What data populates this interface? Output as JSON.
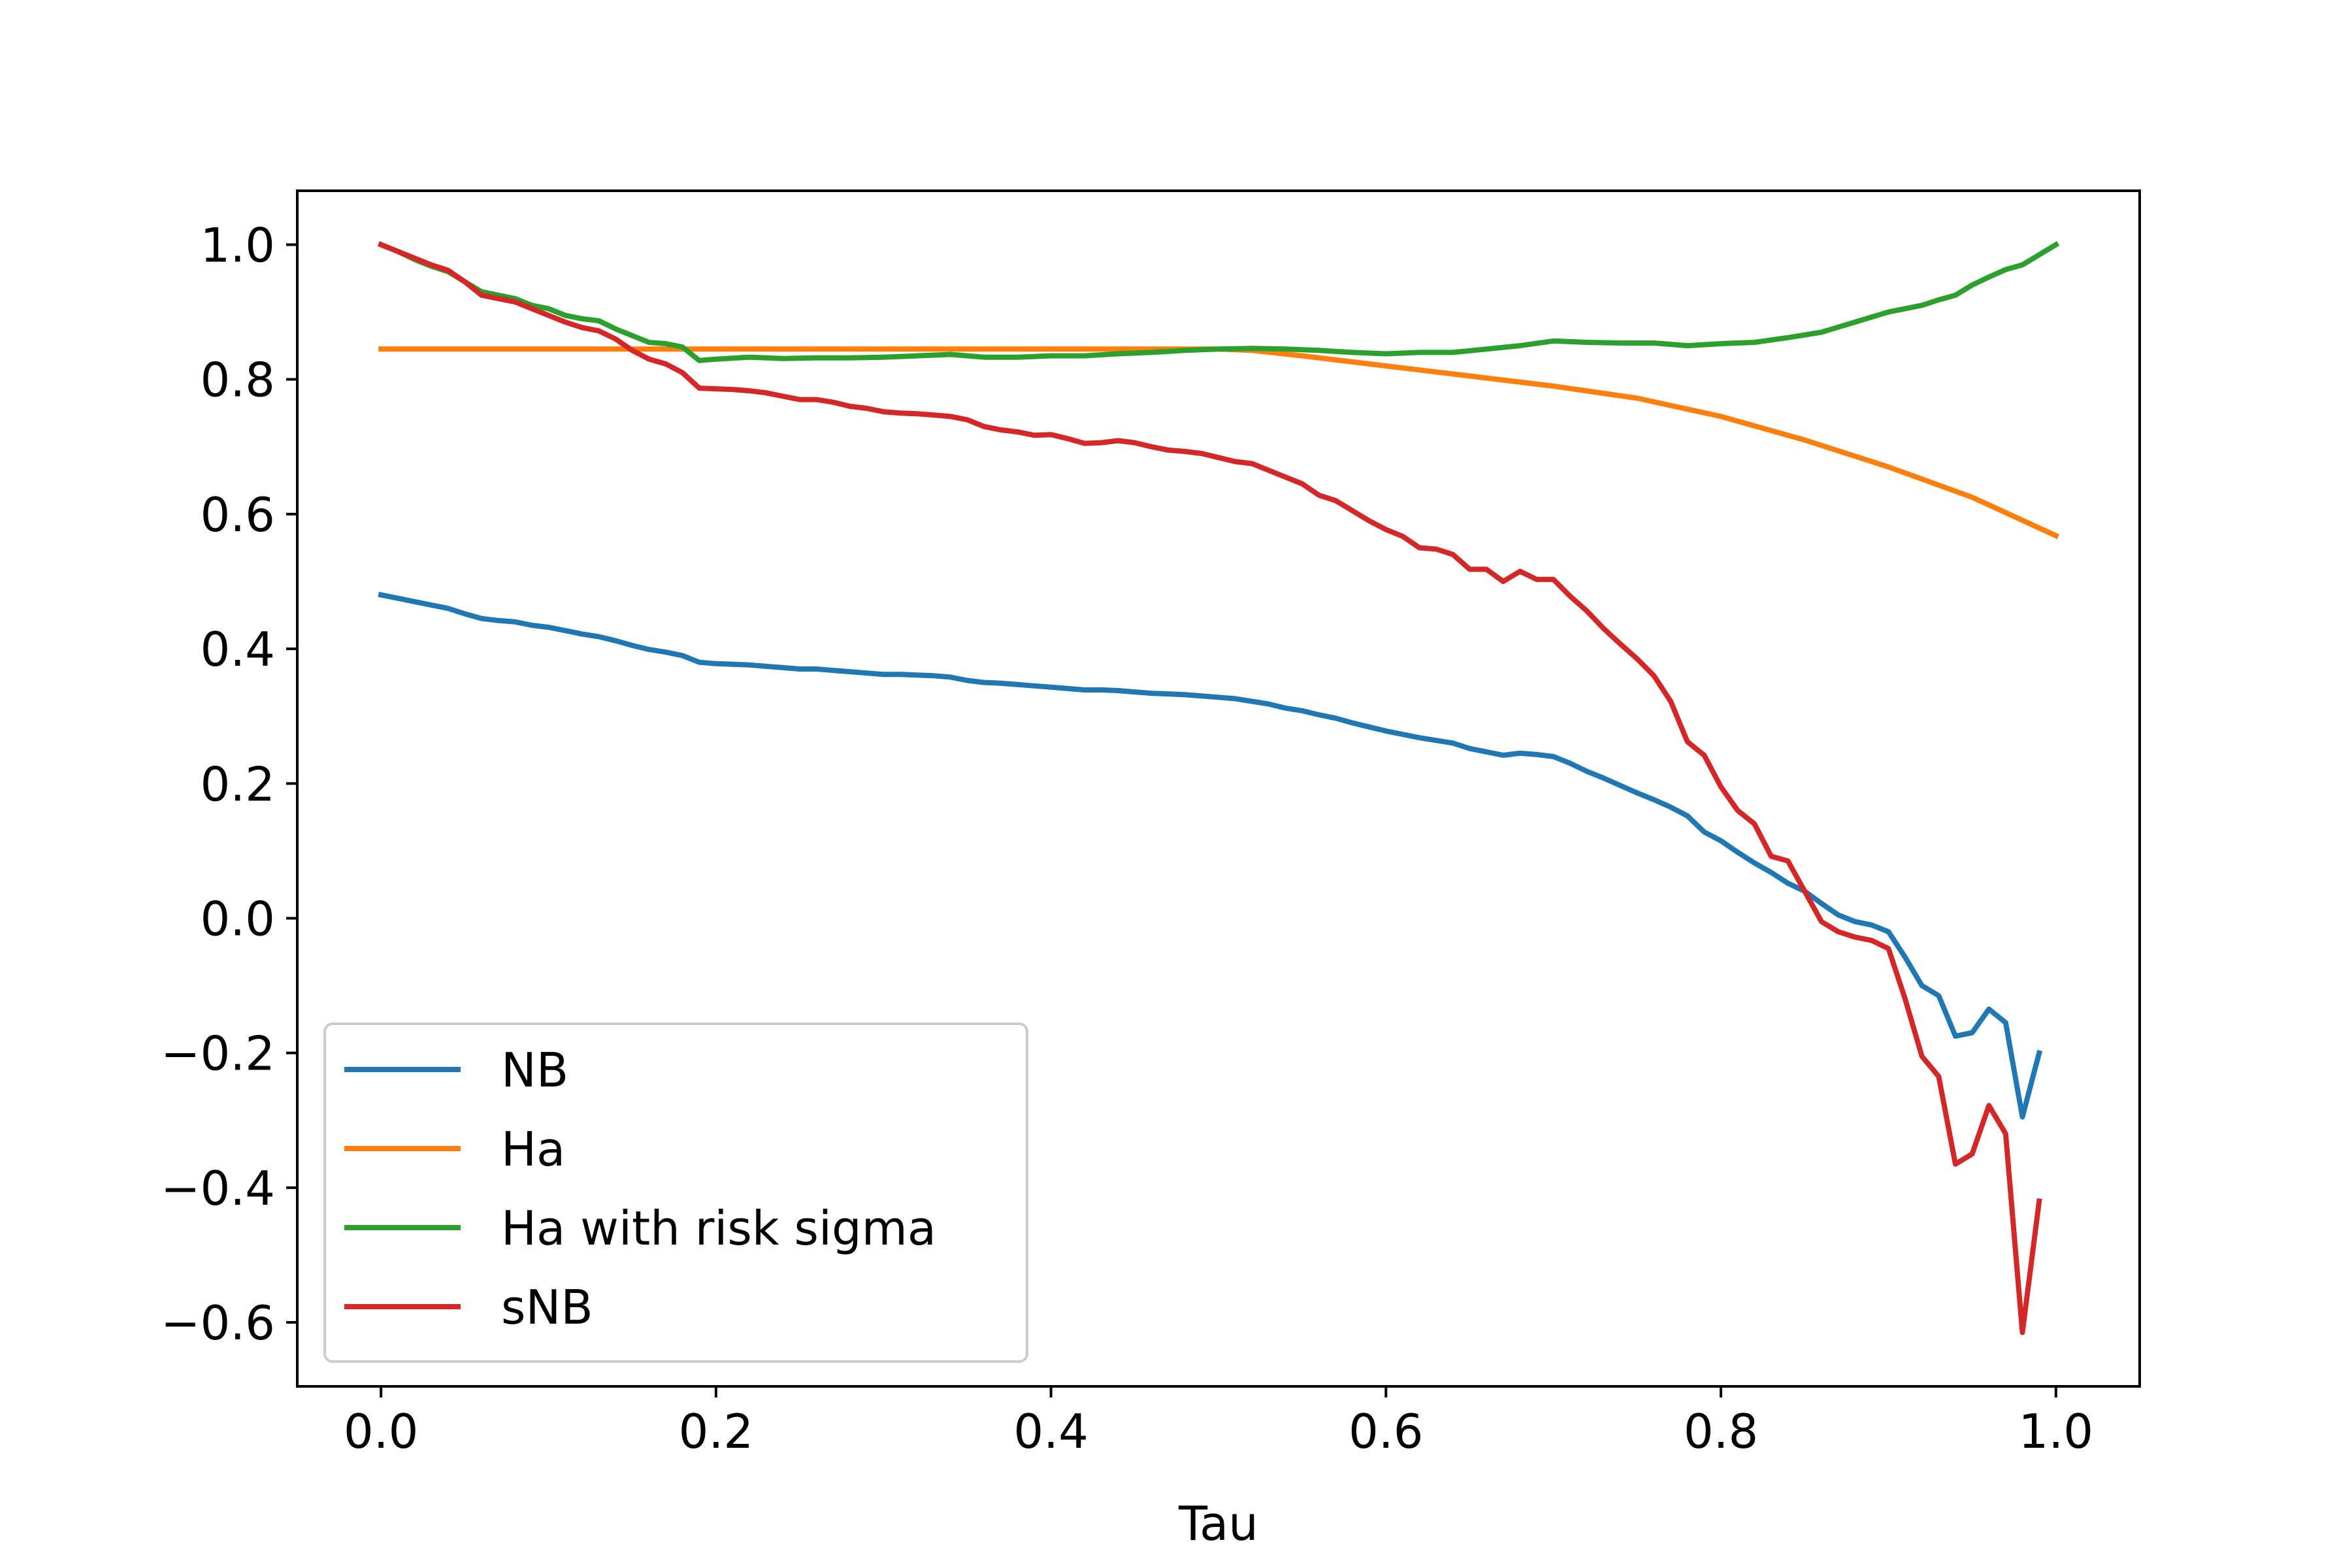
{
  "chart_data": {
    "type": "line",
    "title": "",
    "xlabel": "Tau",
    "ylabel": "",
    "xlim": [
      -0.05,
      1.05
    ],
    "ylim": [
      -0.695,
      1.08
    ],
    "xticks": [
      0.0,
      0.2,
      0.4,
      0.6,
      0.8,
      1.0
    ],
    "xtick_labels": [
      "0.0",
      "0.2",
      "0.4",
      "0.6",
      "0.8",
      "1.0"
    ],
    "yticks": [
      1.0,
      0.8,
      0.6,
      0.4,
      0.2,
      0.0,
      -0.2,
      -0.4,
      -0.6
    ],
    "ytick_labels": [
      "1.0",
      "0.8",
      "0.6",
      "0.4",
      "0.2",
      "0.0",
      "−0.2",
      "−0.4",
      "−0.6"
    ],
    "grid": false,
    "legend_position": "lower-left",
    "series": [
      {
        "name": "NB",
        "color": "#1f77b4",
        "x": [
          0.0,
          0.01,
          0.02,
          0.03,
          0.04,
          0.05,
          0.06,
          0.07,
          0.08,
          0.09,
          0.1,
          0.11,
          0.12,
          0.13,
          0.14,
          0.15,
          0.16,
          0.17,
          0.18,
          0.19,
          0.2,
          0.21,
          0.22,
          0.23,
          0.24,
          0.25,
          0.26,
          0.27,
          0.28,
          0.29,
          0.3,
          0.31,
          0.32,
          0.33,
          0.34,
          0.35,
          0.36,
          0.37,
          0.38,
          0.39,
          0.4,
          0.41,
          0.42,
          0.43,
          0.44,
          0.45,
          0.46,
          0.47,
          0.48,
          0.49,
          0.5,
          0.51,
          0.52,
          0.53,
          0.54,
          0.55,
          0.56,
          0.57,
          0.58,
          0.59,
          0.6,
          0.61,
          0.62,
          0.63,
          0.64,
          0.65,
          0.66,
          0.67,
          0.68,
          0.69,
          0.7,
          0.71,
          0.72,
          0.73,
          0.74,
          0.75,
          0.76,
          0.77,
          0.78,
          0.79,
          0.8,
          0.81,
          0.82,
          0.83,
          0.84,
          0.85,
          0.86,
          0.87,
          0.88,
          0.89,
          0.9,
          0.91,
          0.92,
          0.93,
          0.94,
          0.95,
          0.96,
          0.97,
          0.98,
          0.99
        ],
        "values": [
          0.48,
          0.475,
          0.47,
          0.465,
          0.46,
          0.452,
          0.445,
          0.442,
          0.44,
          0.435,
          0.432,
          0.427,
          0.422,
          0.418,
          0.412,
          0.405,
          0.399,
          0.395,
          0.39,
          0.38,
          0.378,
          0.377,
          0.376,
          0.374,
          0.372,
          0.37,
          0.37,
          0.368,
          0.366,
          0.364,
          0.362,
          0.362,
          0.361,
          0.36,
          0.358,
          0.353,
          0.35,
          0.349,
          0.347,
          0.345,
          0.343,
          0.341,
          0.339,
          0.339,
          0.338,
          0.336,
          0.334,
          0.333,
          0.332,
          0.33,
          0.328,
          0.326,
          0.322,
          0.318,
          0.312,
          0.308,
          0.302,
          0.297,
          0.29,
          0.284,
          0.278,
          0.273,
          0.268,
          0.264,
          0.26,
          0.252,
          0.247,
          0.242,
          0.245,
          0.243,
          0.24,
          0.23,
          0.218,
          0.208,
          0.197,
          0.186,
          0.176,
          0.165,
          0.152,
          0.128,
          0.115,
          0.098,
          0.082,
          0.068,
          0.052,
          0.04,
          0.022,
          0.005,
          -0.005,
          -0.01,
          -0.02,
          -0.058,
          -0.1,
          -0.115,
          -0.175,
          -0.17,
          -0.135,
          -0.155,
          -0.295,
          -0.2
        ]
      },
      {
        "name": "Ha",
        "color": "#ff7f0e",
        "x": [
          0.0,
          0.05,
          0.1,
          0.15,
          0.2,
          0.25,
          0.3,
          0.35,
          0.4,
          0.45,
          0.5,
          0.52,
          0.55,
          0.6,
          0.65,
          0.7,
          0.75,
          0.8,
          0.85,
          0.9,
          0.95,
          1.0
        ],
        "values": [
          0.845,
          0.845,
          0.845,
          0.845,
          0.845,
          0.845,
          0.845,
          0.845,
          0.845,
          0.845,
          0.845,
          0.843,
          0.835,
          0.82,
          0.805,
          0.79,
          0.772,
          0.745,
          0.71,
          0.67,
          0.625,
          0.568
        ]
      },
      {
        "name": "Ha with risk sigma",
        "color": "#2ca02c",
        "x": [
          0.0,
          0.01,
          0.02,
          0.03,
          0.04,
          0.05,
          0.06,
          0.07,
          0.08,
          0.09,
          0.1,
          0.11,
          0.12,
          0.13,
          0.14,
          0.15,
          0.16,
          0.17,
          0.18,
          0.19,
          0.2,
          0.22,
          0.24,
          0.26,
          0.28,
          0.3,
          0.32,
          0.34,
          0.36,
          0.38,
          0.4,
          0.42,
          0.44,
          0.46,
          0.48,
          0.5,
          0.52,
          0.54,
          0.56,
          0.58,
          0.6,
          0.62,
          0.64,
          0.66,
          0.68,
          0.7,
          0.72,
          0.74,
          0.76,
          0.78,
          0.8,
          0.82,
          0.84,
          0.86,
          0.88,
          0.9,
          0.91,
          0.92,
          0.93,
          0.94,
          0.95,
          0.96,
          0.97,
          0.98,
          0.99,
          1.0
        ],
        "values": [
          1.0,
          0.99,
          0.978,
          0.968,
          0.96,
          0.945,
          0.93,
          0.925,
          0.92,
          0.91,
          0.905,
          0.895,
          0.89,
          0.887,
          0.875,
          0.865,
          0.855,
          0.853,
          0.848,
          0.828,
          0.83,
          0.833,
          0.831,
          0.832,
          0.832,
          0.833,
          0.835,
          0.837,
          0.833,
          0.833,
          0.835,
          0.835,
          0.838,
          0.84,
          0.843,
          0.845,
          0.846,
          0.845,
          0.843,
          0.84,
          0.838,
          0.84,
          0.84,
          0.845,
          0.85,
          0.857,
          0.855,
          0.854,
          0.854,
          0.85,
          0.853,
          0.855,
          0.862,
          0.87,
          0.885,
          0.9,
          0.905,
          0.91,
          0.918,
          0.925,
          0.94,
          0.952,
          0.963,
          0.97,
          0.985,
          1.0
        ]
      },
      {
        "name": "sNB",
        "color": "#d62728",
        "x": [
          0.0,
          0.01,
          0.02,
          0.03,
          0.04,
          0.05,
          0.06,
          0.07,
          0.08,
          0.09,
          0.1,
          0.11,
          0.12,
          0.13,
          0.14,
          0.15,
          0.16,
          0.17,
          0.18,
          0.19,
          0.2,
          0.21,
          0.22,
          0.23,
          0.24,
          0.25,
          0.26,
          0.27,
          0.28,
          0.29,
          0.3,
          0.31,
          0.32,
          0.33,
          0.34,
          0.35,
          0.36,
          0.37,
          0.38,
          0.39,
          0.4,
          0.41,
          0.42,
          0.43,
          0.44,
          0.45,
          0.46,
          0.47,
          0.48,
          0.49,
          0.5,
          0.51,
          0.52,
          0.53,
          0.54,
          0.55,
          0.56,
          0.57,
          0.58,
          0.59,
          0.6,
          0.61,
          0.62,
          0.63,
          0.64,
          0.65,
          0.66,
          0.67,
          0.68,
          0.69,
          0.7,
          0.71,
          0.72,
          0.73,
          0.74,
          0.75,
          0.76,
          0.77,
          0.78,
          0.79,
          0.8,
          0.81,
          0.82,
          0.83,
          0.84,
          0.85,
          0.86,
          0.87,
          0.88,
          0.89,
          0.9,
          0.91,
          0.92,
          0.93,
          0.94,
          0.95,
          0.96,
          0.97,
          0.98,
          0.99
        ],
        "values": [
          1.0,
          0.99,
          0.98,
          0.97,
          0.962,
          0.945,
          0.925,
          0.92,
          0.915,
          0.905,
          0.895,
          0.885,
          0.877,
          0.872,
          0.86,
          0.843,
          0.83,
          0.823,
          0.81,
          0.787,
          0.786,
          0.785,
          0.783,
          0.78,
          0.775,
          0.77,
          0.77,
          0.766,
          0.76,
          0.757,
          0.752,
          0.75,
          0.749,
          0.747,
          0.745,
          0.74,
          0.73,
          0.725,
          0.722,
          0.717,
          0.718,
          0.712,
          0.705,
          0.706,
          0.709,
          0.706,
          0.7,
          0.695,
          0.693,
          0.69,
          0.684,
          0.678,
          0.675,
          0.665,
          0.655,
          0.645,
          0.628,
          0.62,
          0.605,
          0.59,
          0.577,
          0.567,
          0.55,
          0.548,
          0.54,
          0.518,
          0.518,
          0.5,
          0.515,
          0.503,
          0.503,
          0.478,
          0.456,
          0.43,
          0.407,
          0.385,
          0.36,
          0.322,
          0.262,
          0.242,
          0.195,
          0.16,
          0.14,
          0.092,
          0.085,
          0.04,
          -0.005,
          -0.02,
          -0.028,
          -0.033,
          -0.045,
          -0.12,
          -0.205,
          -0.235,
          -0.365,
          -0.35,
          -0.278,
          -0.32,
          -0.615,
          -0.42
        ]
      }
    ]
  }
}
